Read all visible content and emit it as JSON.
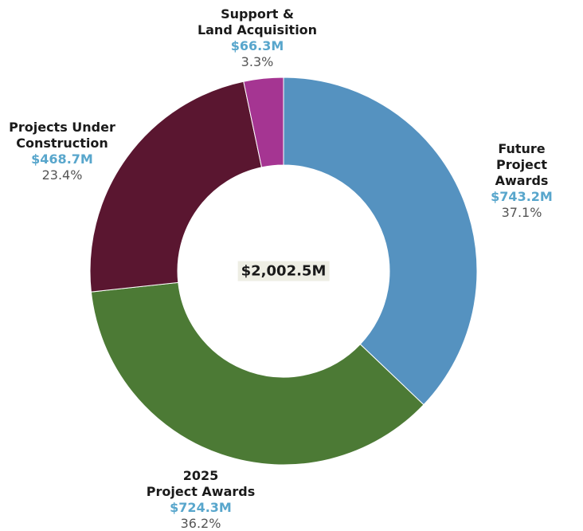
{
  "chart_data": {
    "type": "donut",
    "categories": [
      "Future\nProject Awards",
      "2025\nProject Awards",
      "Projects Under\nConstruction",
      "Support &\nLand Acquisition"
    ],
    "values": [
      743.2,
      724.3,
      468.7,
      66.3
    ],
    "value_labels": [
      "$743.2M",
      "$724.3M",
      "$468.7M",
      "$66.3M"
    ],
    "percents": [
      37.1,
      36.2,
      23.4,
      3.3
    ],
    "percent_labels": [
      "37.1%",
      "36.2%",
      "23.4%",
      "3.3%"
    ],
    "colors": [
      "#5592c0",
      "#4c7a35",
      "#5a1630",
      "#a53592"
    ],
    "total": {
      "value": 2002.5,
      "label": "$2,002.5M"
    }
  }
}
